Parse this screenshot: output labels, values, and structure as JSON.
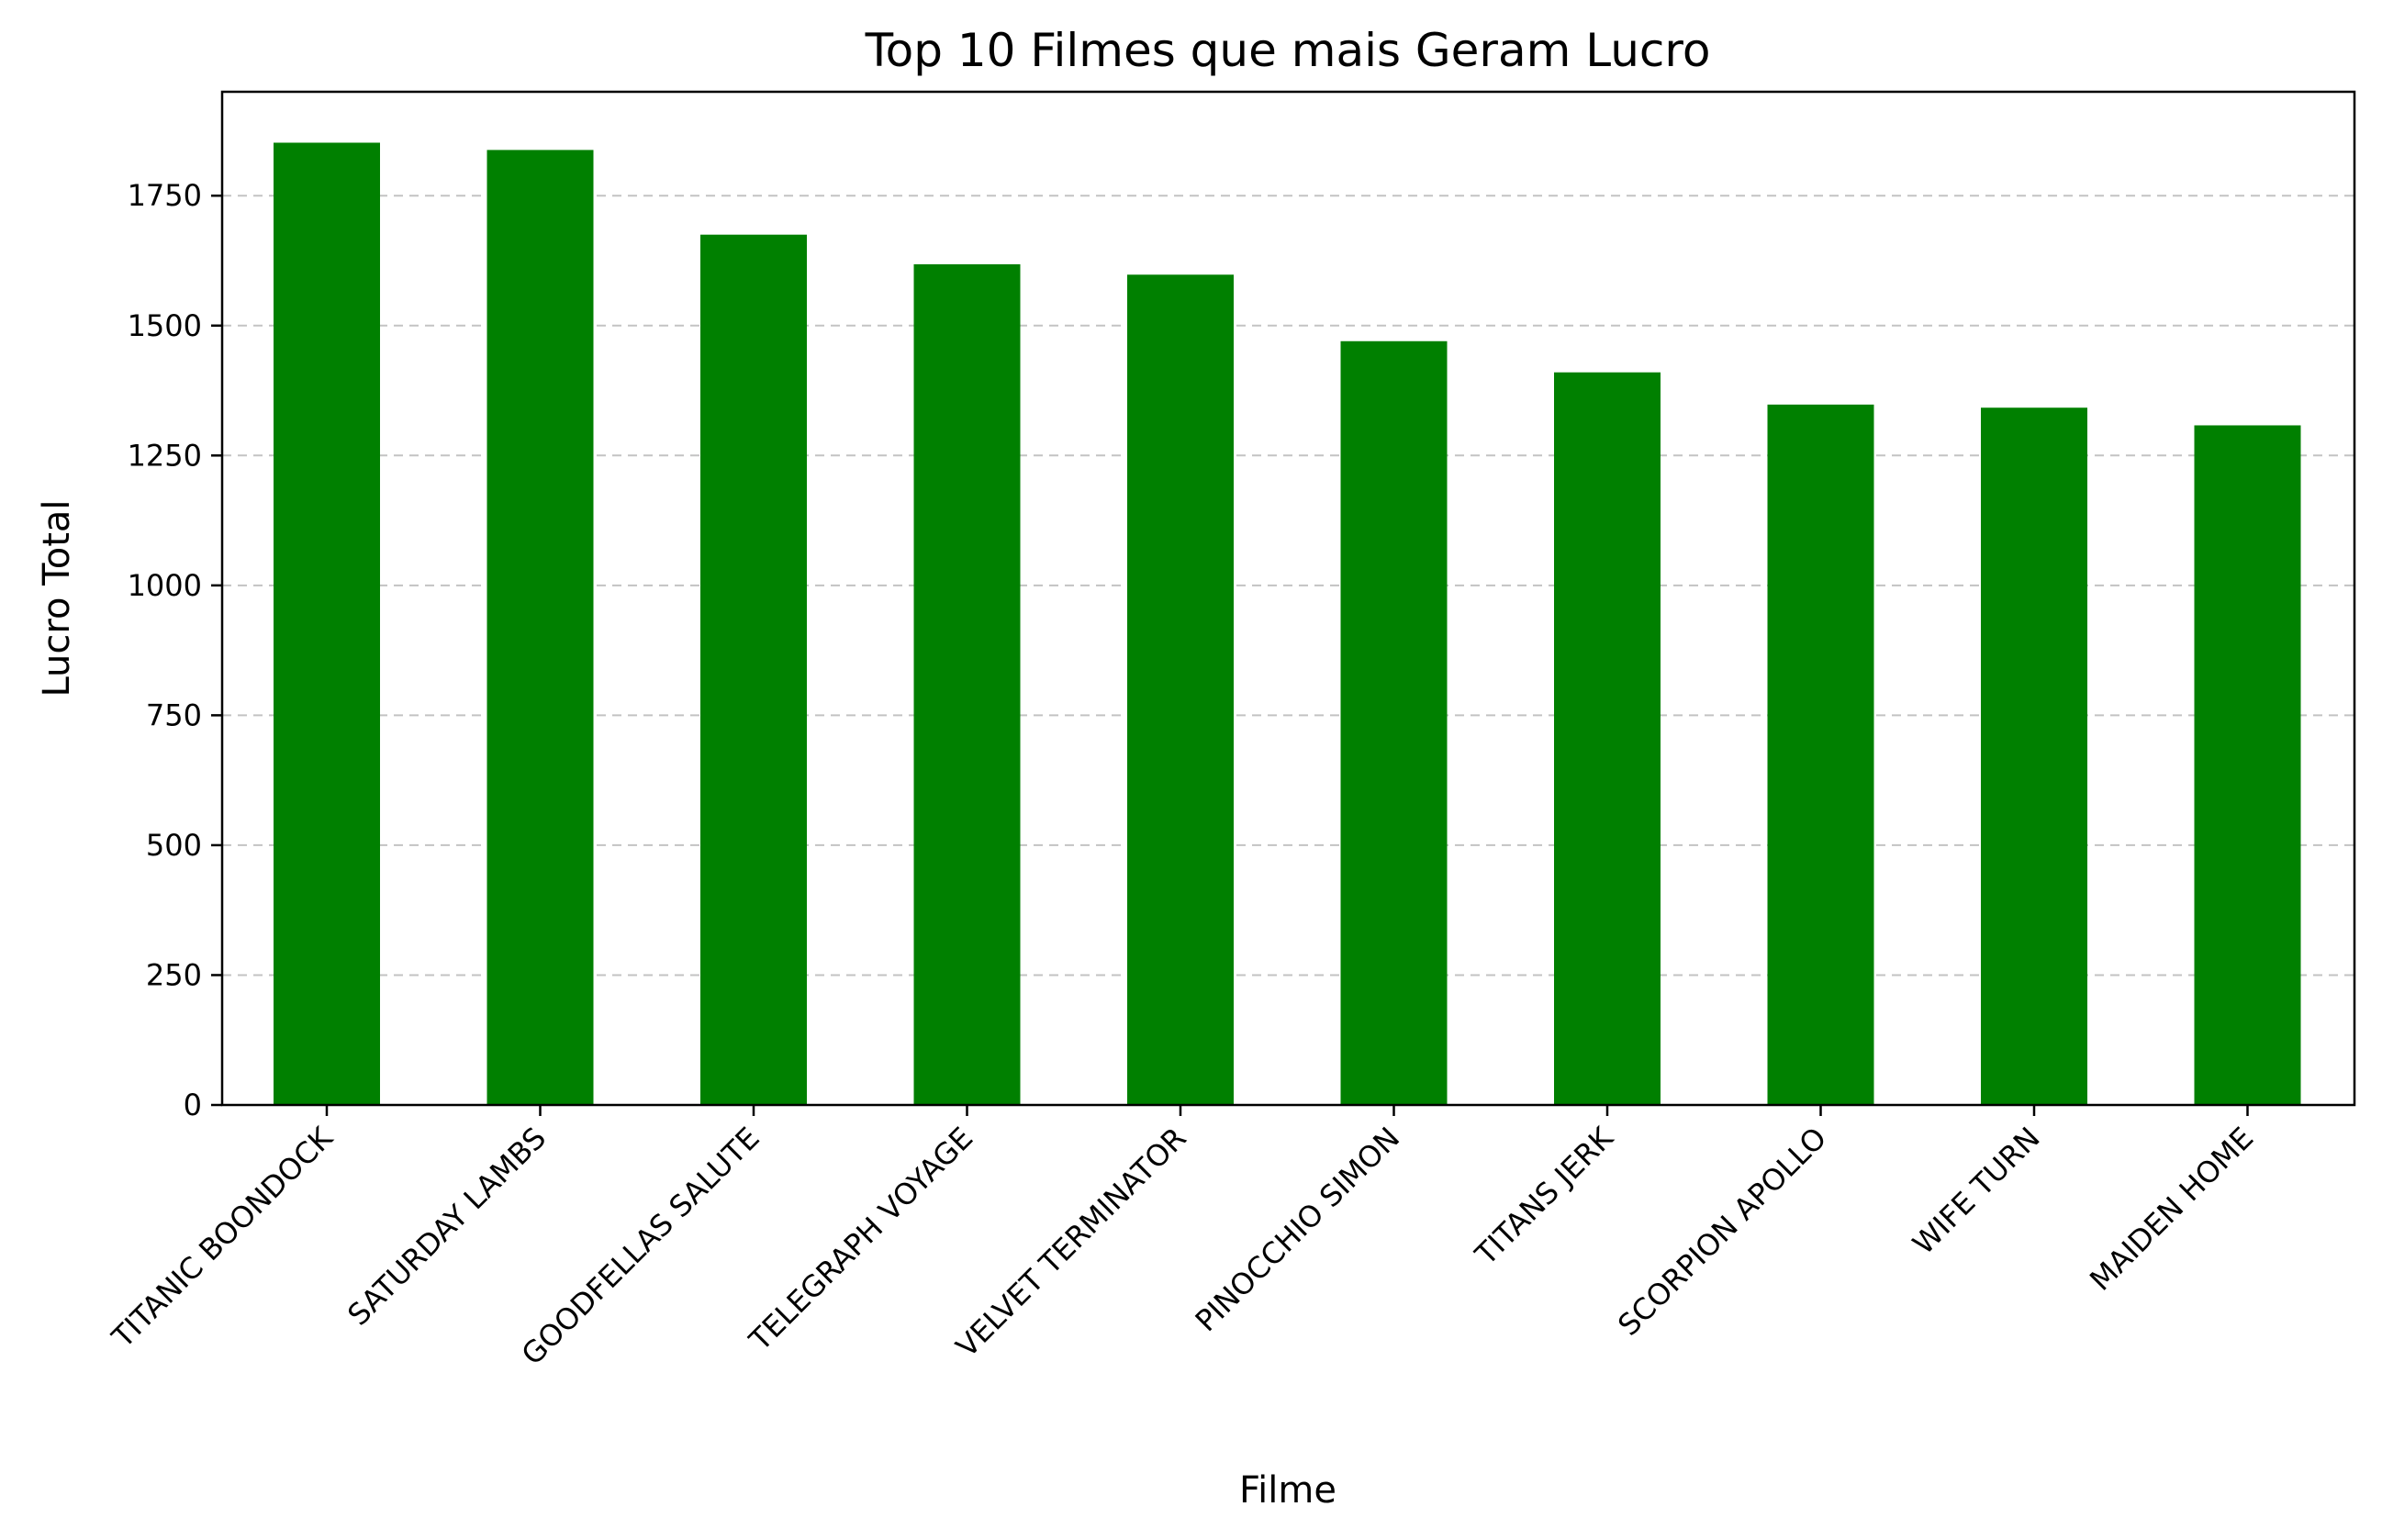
{
  "chart_data": {
    "type": "bar",
    "title": "Top 10 Filmes que mais Geram Lucro",
    "xlabel": "Filme",
    "ylabel": "Lucro Total",
    "categories": [
      "TITANIC BOONDOCK",
      "SATURDAY LAMBS",
      "GOODFELLAS SALUTE",
      "TELEGRAPH VOYAGE",
      "VELVET TERMINATOR",
      "PINOCCHIO SIMON",
      "TITANS JERK",
      "SCORPION APOLLO",
      "WIFE TURN",
      "MAIDEN HOME"
    ],
    "values": [
      1852,
      1838,
      1675,
      1618,
      1598,
      1470,
      1410,
      1348,
      1342,
      1308
    ],
    "ylim": [
      0,
      1950
    ],
    "yticks": [
      0,
      250,
      500,
      750,
      1000,
      1250,
      1500,
      1750
    ],
    "bar_color": "#008000",
    "grid": "y-dashed",
    "legend": "none"
  }
}
